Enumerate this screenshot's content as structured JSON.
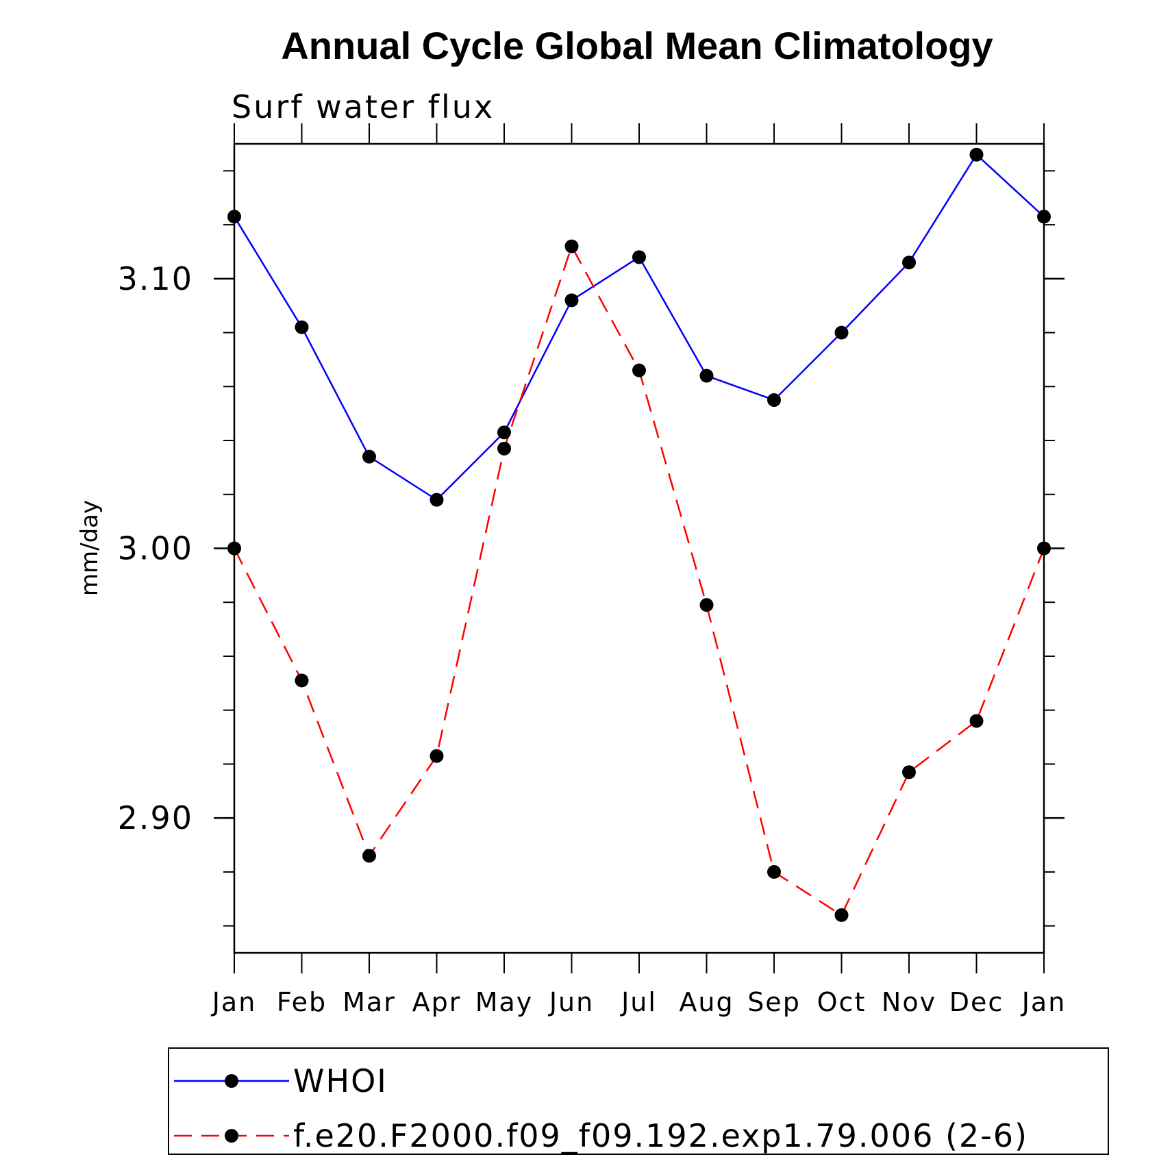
{
  "chart_data": {
    "type": "line",
    "title": "Annual Cycle Global Mean Climatology",
    "subtitle": "Surf  water  flux",
    "xlabel": "",
    "ylabel": "mm/day",
    "categories": [
      "Jan",
      "Feb",
      "Mar",
      "Apr",
      "May",
      "Jun",
      "Jul",
      "Aug",
      "Sep",
      "Oct",
      "Nov",
      "Dec",
      "Jan"
    ],
    "ylim": [
      2.85,
      3.15
    ],
    "yticks_major": [
      2.9,
      3.0,
      3.1
    ],
    "ytick_labels": [
      "2.90",
      "3.00",
      "3.10"
    ],
    "yticks_minor_step": 0.02,
    "series": [
      {
        "name": "WHOI",
        "color": "#0000ff",
        "style": "solid",
        "marker": "filled-circle",
        "values": [
          3.123,
          3.082,
          3.034,
          3.018,
          3.043,
          3.092,
          3.108,
          3.064,
          3.055,
          3.08,
          3.106,
          3.146,
          3.123
        ]
      },
      {
        "name": "f.e20.F2000.f09_f09.192.exp1.79.006 (2-6)",
        "color": "#ff0000",
        "style": "dashed",
        "marker": "filled-circle",
        "values": [
          3.0,
          2.951,
          2.886,
          2.923,
          3.037,
          3.112,
          3.066,
          2.979,
          2.88,
          2.864,
          2.917,
          2.936,
          3.0
        ]
      }
    ],
    "legend": {
      "position": "bottom"
    }
  }
}
